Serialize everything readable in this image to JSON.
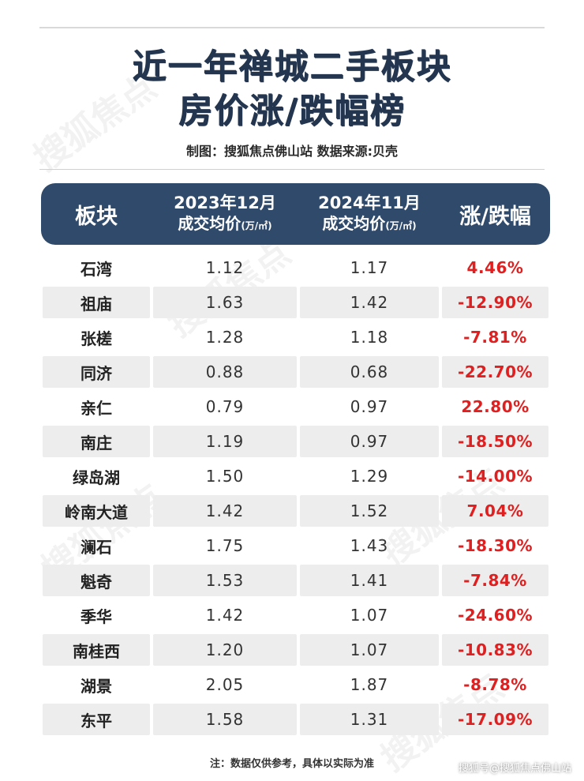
{
  "title_line1": "近一年禅城二手板块",
  "title_line2": "房价涨/跌幅榜",
  "subtitle": "制图：搜狐焦点佛山站 数据来源:贝壳",
  "watermark_text": "搜狐焦点",
  "table": {
    "headers": {
      "district": "板块",
      "date1": "2023年12月",
      "date2": "2024年11月",
      "avg_price": "成交均价",
      "unit": "(万/㎡)",
      "change": "涨/跌幅"
    },
    "rows": [
      {
        "name": "石湾",
        "p2023": "1.12",
        "p2024": "1.17",
        "change": "4.46%"
      },
      {
        "name": "祖庙",
        "p2023": "1.63",
        "p2024": "1.42",
        "change": "-12.90%"
      },
      {
        "name": "张槎",
        "p2023": "1.28",
        "p2024": "1.18",
        "change": "-7.81%"
      },
      {
        "name": "同济",
        "p2023": "0.88",
        "p2024": "0.68",
        "change": "-22.70%"
      },
      {
        "name": "亲仁",
        "p2023": "0.79",
        "p2024": "0.97",
        "change": "22.80%"
      },
      {
        "name": "南庄",
        "p2023": "1.19",
        "p2024": "0.97",
        "change": "-18.50%"
      },
      {
        "name": "绿岛湖",
        "p2023": "1.50",
        "p2024": "1.29",
        "change": "-14.00%"
      },
      {
        "name": "岭南大道",
        "p2023": "1.42",
        "p2024": "1.52",
        "change": "7.04%"
      },
      {
        "name": "澜石",
        "p2023": "1.75",
        "p2024": "1.43",
        "change": "-18.30%"
      },
      {
        "name": "魁奇",
        "p2023": "1.53",
        "p2024": "1.41",
        "change": "-7.84%"
      },
      {
        "name": "季华",
        "p2023": "1.42",
        "p2024": "1.07",
        "change": "-24.60%"
      },
      {
        "name": "南桂西",
        "p2023": "1.20",
        "p2024": "1.07",
        "change": "-10.83%"
      },
      {
        "name": "湖景",
        "p2023": "2.05",
        "p2024": "1.87",
        "change": "-8.78%"
      },
      {
        "name": "东平",
        "p2023": "1.58",
        "p2024": "1.31",
        "change": "-17.09%"
      }
    ]
  },
  "footnote": "注：数据仅供参考，具体以实际为准",
  "credit": "搜狐号@搜狐焦点佛山站",
  "colors": {
    "header_bg": "#2f4a6b",
    "title": "#24364f",
    "change_text": "#e02020",
    "alt_row": "#ededed"
  }
}
